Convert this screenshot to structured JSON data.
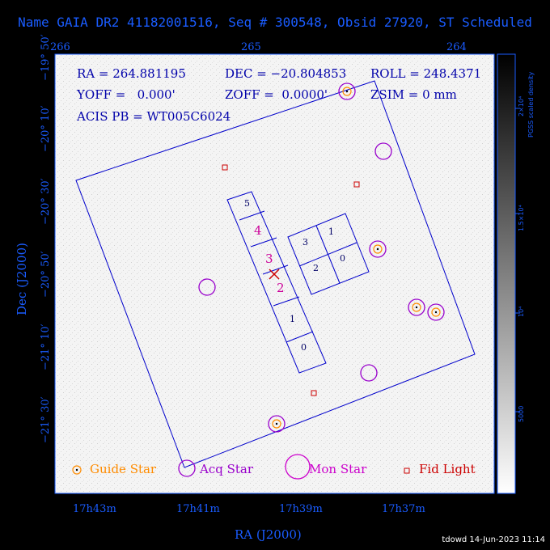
{
  "title": "Name GAIA DR2 41182001516, Seq # 300548, Obsid 27920, ST Scheduled",
  "header_info": {
    "ra": "RA = 264.881195",
    "dec": "DEC = −20.804853",
    "roll": "ROLL = 248.4371",
    "yoff": "YOFF =   0.000'",
    "zoff": "ZOFF =  0.0000'",
    "zsim": "ZSIM = 0 mm",
    "acis_pb": "ACIS PB = WT005C6024"
  },
  "axes": {
    "top_ticks": [
      "266",
      "265",
      "264"
    ],
    "bottom_ticks": [
      "17h43m",
      "17h41m",
      "17h39m",
      "17h37m"
    ],
    "left_ticks": [
      "−19° 50′",
      "−20° 10′",
      "−20° 30′",
      "−20° 50′",
      "−21° 10′",
      "−21° 30′"
    ],
    "xlabel": "RA (J2000)",
    "ylabel": "Dec (J2000)"
  },
  "colorbar": {
    "label": "PGSS scaled density",
    "ticks": [
      "2×10⁴",
      "1.5×10⁴",
      "10⁴",
      "5000"
    ]
  },
  "chips": {
    "s_array": [
      "5",
      "4",
      "3",
      "2",
      "1",
      "0"
    ],
    "i_array": [
      "3",
      "1",
      "2",
      "0"
    ]
  },
  "legend": {
    "guide": "Guide Star",
    "acq": "Acq Star",
    "mon": "Mon Star",
    "fid": "Fid Light"
  },
  "colors": {
    "guide": "#ff8c00",
    "acq": "#9900cc",
    "mon": "#cc00cc",
    "fid": "#cc0000",
    "axis": "#1a5cff",
    "overlay": "#0000aa"
  },
  "stamp": "tdowd 14-Jun-2023 11:14"
}
